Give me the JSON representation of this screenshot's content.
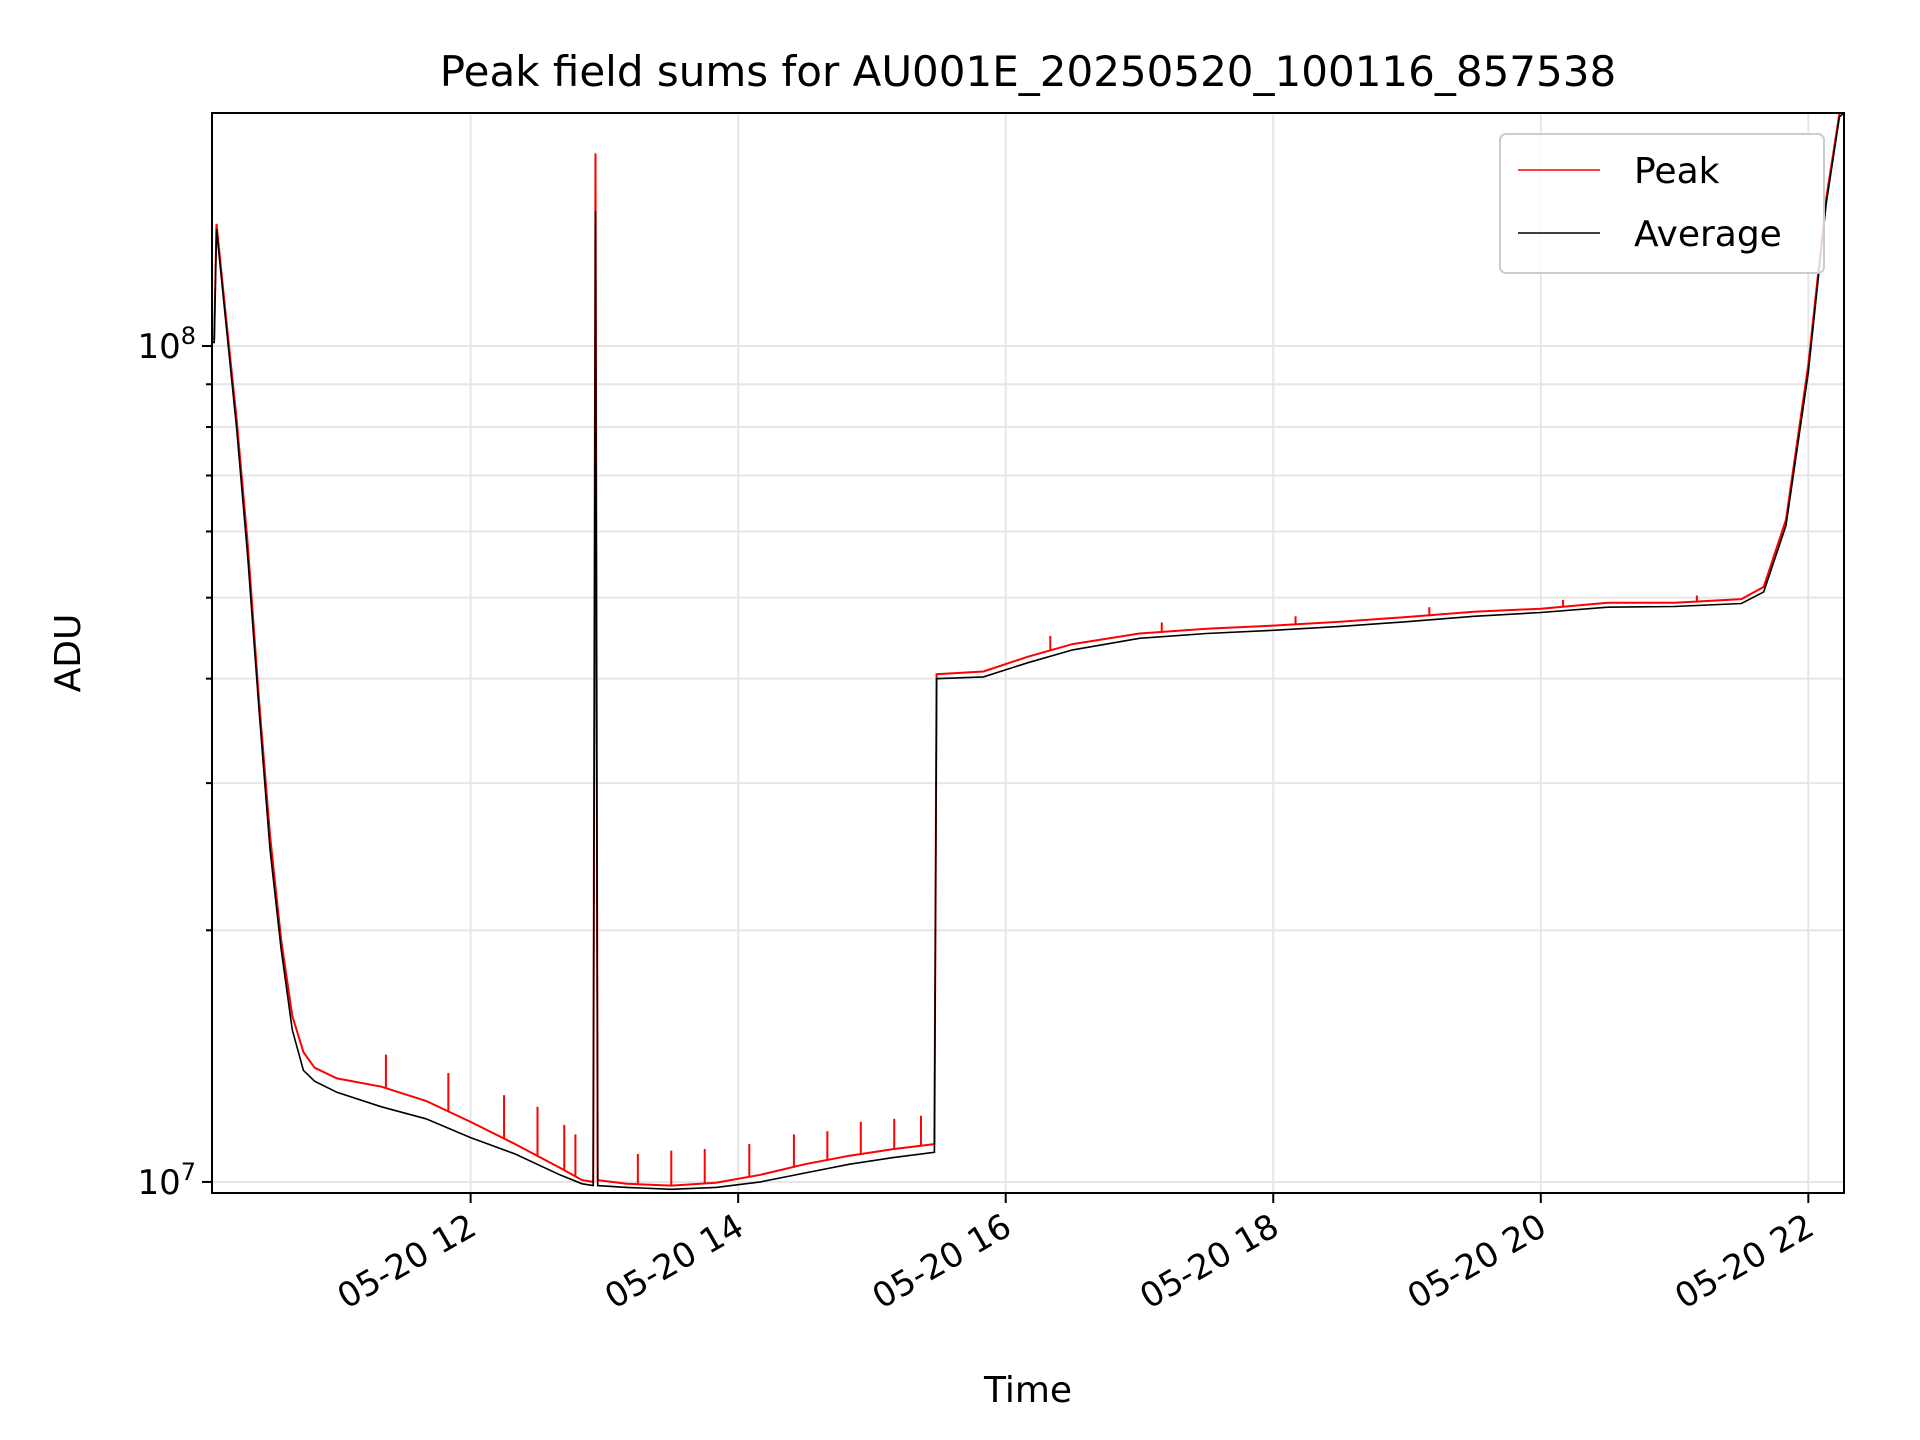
{
  "chart_data": {
    "type": "line",
    "title": "Peak field sums for AU001E_20250520_100116_857538",
    "xlabel": "Time",
    "ylabel": "ADU",
    "y_scale": "log",
    "ylim": [
      9700000,
      190000000
    ],
    "xlim": [
      "2025-05-20 10:04",
      "2025-05-20 22:16"
    ],
    "grid": true,
    "legend_position": "top-right",
    "x_ticks": [
      {
        "time": "2025-05-20 12:00",
        "label": "05-20 12"
      },
      {
        "time": "2025-05-20 14:00",
        "label": "05-20 14"
      },
      {
        "time": "2025-05-20 16:00",
        "label": "05-20 16"
      },
      {
        "time": "2025-05-20 18:00",
        "label": "05-20 18"
      },
      {
        "time": "2025-05-20 20:00",
        "label": "05-20 20"
      },
      {
        "time": "2025-05-20 22:00",
        "label": "05-20 22"
      }
    ],
    "y_ticks": [
      {
        "value": 10000000,
        "base": "10",
        "exp": "7"
      },
      {
        "value": 100000000,
        "base": "10",
        "exp": "8"
      }
    ],
    "series": [
      {
        "name": "Peak",
        "color": "#ff0000",
        "points": [
          [
            "2025-05-20 10:04",
            102000000
          ],
          [
            "2025-05-20 10:05",
            102000000
          ],
          [
            "2025-05-20 10:06",
            140000000
          ],
          [
            "2025-05-20 10:10",
            110000000
          ],
          [
            "2025-05-20 10:15",
            82000000
          ],
          [
            "2025-05-20 10:20",
            58000000
          ],
          [
            "2025-05-20 10:25",
            38000000
          ],
          [
            "2025-05-20 10:30",
            26000000
          ],
          [
            "2025-05-20 10:35",
            19500000
          ],
          [
            "2025-05-20 10:40",
            15800000
          ],
          [
            "2025-05-20 10:45",
            14300000
          ],
          [
            "2025-05-20 10:50",
            13700000
          ],
          [
            "2025-05-20 11:00",
            13300000
          ],
          [
            "2025-05-20 11:20",
            13000000
          ],
          [
            "2025-05-20 11:40",
            12500000
          ],
          [
            "2025-05-20 12:00",
            11800000
          ],
          [
            "2025-05-20 12:20",
            11100000
          ],
          [
            "2025-05-20 12:40",
            10400000
          ],
          [
            "2025-05-20 12:50",
            10050000
          ],
          [
            "2025-05-20 12:55",
            10000000
          ],
          [
            "2025-05-20 12:56",
            170000000
          ],
          [
            "2025-05-20 12:57",
            10050000
          ],
          [
            "2025-05-20 13:10",
            9950000
          ],
          [
            "2025-05-20 13:30",
            9900000
          ],
          [
            "2025-05-20 13:50",
            9980000
          ],
          [
            "2025-05-20 14:10",
            10200000
          ],
          [
            "2025-05-20 14:30",
            10500000
          ],
          [
            "2025-05-20 14:50",
            10750000
          ],
          [
            "2025-05-20 15:10",
            10950000
          ],
          [
            "2025-05-20 15:28",
            11100000
          ],
          [
            "2025-05-20 15:29",
            40500000
          ],
          [
            "2025-05-20 15:50",
            40800000
          ],
          [
            "2025-05-20 16:10",
            42500000
          ],
          [
            "2025-05-20 16:30",
            44000000
          ],
          [
            "2025-05-20 17:00",
            45300000
          ],
          [
            "2025-05-20 17:30",
            45900000
          ],
          [
            "2025-05-20 18:00",
            46300000
          ],
          [
            "2025-05-20 18:30",
            46800000
          ],
          [
            "2025-05-20 19:00",
            47400000
          ],
          [
            "2025-05-20 19:30",
            48100000
          ],
          [
            "2025-05-20 20:00",
            48500000
          ],
          [
            "2025-05-20 20:30",
            49300000
          ],
          [
            "2025-05-20 21:00",
            49300000
          ],
          [
            "2025-05-20 21:30",
            49800000
          ],
          [
            "2025-05-20 21:40",
            51500000
          ],
          [
            "2025-05-20 21:50",
            62000000
          ],
          [
            "2025-05-20 22:00",
            95000000
          ],
          [
            "2025-05-20 22:08",
            150000000
          ],
          [
            "2025-05-20 22:14",
            190000000
          ],
          [
            "2025-05-20 22:16",
            190000000
          ]
        ],
        "spikes": [
          [
            "2025-05-20 11:22",
            14200000
          ],
          [
            "2025-05-20 11:50",
            13500000
          ],
          [
            "2025-05-20 12:15",
            12700000
          ],
          [
            "2025-05-20 12:30",
            12300000
          ],
          [
            "2025-05-20 12:42",
            11700000
          ],
          [
            "2025-05-20 12:47",
            11400000
          ],
          [
            "2025-05-20 13:15",
            10800000
          ],
          [
            "2025-05-20 13:30",
            10900000
          ],
          [
            "2025-05-20 13:45",
            10950000
          ],
          [
            "2025-05-20 14:05",
            11100000
          ],
          [
            "2025-05-20 14:25",
            11400000
          ],
          [
            "2025-05-20 14:40",
            11500000
          ],
          [
            "2025-05-20 14:55",
            11800000
          ],
          [
            "2025-05-20 15:10",
            11900000
          ],
          [
            "2025-05-20 15:22",
            12000000
          ],
          [
            "2025-05-20 16:20",
            45000000
          ],
          [
            "2025-05-20 17:10",
            46700000
          ],
          [
            "2025-05-20 18:10",
            47500000
          ],
          [
            "2025-05-20 19:10",
            48700000
          ],
          [
            "2025-05-20 20:10",
            49700000
          ],
          [
            "2025-05-20 21:10",
            50300000
          ]
        ]
      },
      {
        "name": "Average",
        "color": "#000000",
        "points": [
          [
            "2025-05-20 10:04",
            101000000
          ],
          [
            "2025-05-20 10:05",
            101000000
          ],
          [
            "2025-05-20 10:06",
            138000000
          ],
          [
            "2025-05-20 10:10",
            108000000
          ],
          [
            "2025-05-20 10:15",
            80000000
          ],
          [
            "2025-05-20 10:20",
            56000000
          ],
          [
            "2025-05-20 10:25",
            37000000
          ],
          [
            "2025-05-20 10:30",
            25000000
          ],
          [
            "2025-05-20 10:35",
            19000000
          ],
          [
            "2025-05-20 10:40",
            15200000
          ],
          [
            "2025-05-20 10:45",
            13600000
          ],
          [
            "2025-05-20 10:50",
            13200000
          ],
          [
            "2025-05-20 11:00",
            12800000
          ],
          [
            "2025-05-20 11:20",
            12300000
          ],
          [
            "2025-05-20 11:40",
            11900000
          ],
          [
            "2025-05-20 12:00",
            11300000
          ],
          [
            "2025-05-20 12:20",
            10800000
          ],
          [
            "2025-05-20 12:40",
            10200000
          ],
          [
            "2025-05-20 12:50",
            9950000
          ],
          [
            "2025-05-20 12:55",
            9900000
          ],
          [
            "2025-05-20 12:56",
            145000000
          ],
          [
            "2025-05-20 12:57",
            9900000
          ],
          [
            "2025-05-20 13:10",
            9850000
          ],
          [
            "2025-05-20 13:30",
            9800000
          ],
          [
            "2025-05-20 13:50",
            9850000
          ],
          [
            "2025-05-20 14:10",
            10000000
          ],
          [
            "2025-05-20 14:30",
            10250000
          ],
          [
            "2025-05-20 14:50",
            10500000
          ],
          [
            "2025-05-20 15:10",
            10700000
          ],
          [
            "2025-05-20 15:28",
            10850000
          ],
          [
            "2025-05-20 15:29",
            40000000
          ],
          [
            "2025-05-20 15:50",
            40200000
          ],
          [
            "2025-05-20 16:10",
            41800000
          ],
          [
            "2025-05-20 16:30",
            43300000
          ],
          [
            "2025-05-20 17:00",
            44700000
          ],
          [
            "2025-05-20 17:30",
            45300000
          ],
          [
            "2025-05-20 18:00",
            45700000
          ],
          [
            "2025-05-20 18:30",
            46200000
          ],
          [
            "2025-05-20 19:00",
            46800000
          ],
          [
            "2025-05-20 19:30",
            47500000
          ],
          [
            "2025-05-20 20:00",
            48000000
          ],
          [
            "2025-05-20 20:30",
            48700000
          ],
          [
            "2025-05-20 21:00",
            48800000
          ],
          [
            "2025-05-20 21:30",
            49200000
          ],
          [
            "2025-05-20 21:40",
            50800000
          ],
          [
            "2025-05-20 21:50",
            61000000
          ],
          [
            "2025-05-20 22:00",
            93000000
          ],
          [
            "2025-05-20 22:08",
            148000000
          ],
          [
            "2025-05-20 22:14",
            188000000
          ],
          [
            "2025-05-20 22:16",
            190000000
          ]
        ]
      }
    ]
  }
}
